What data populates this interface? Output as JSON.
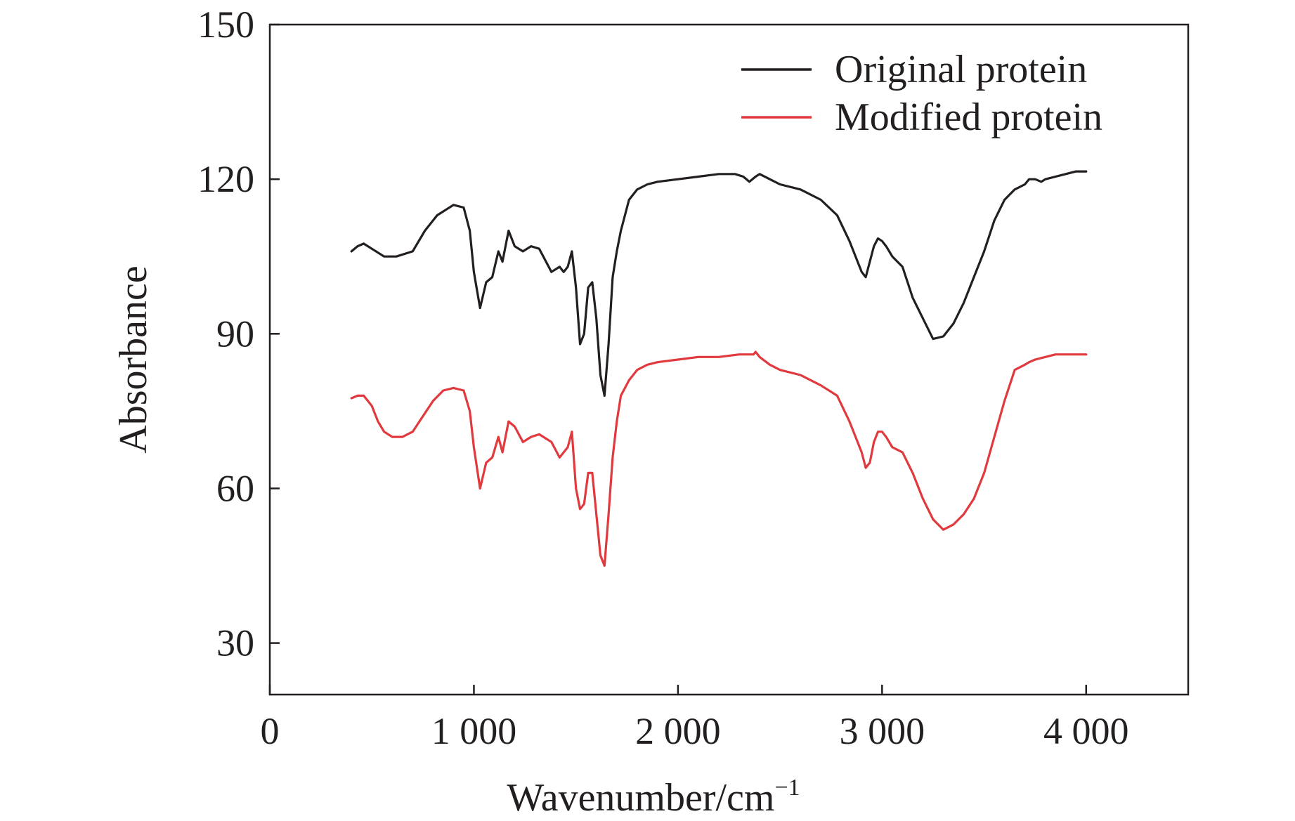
{
  "chart_data": {
    "type": "line",
    "title": "",
    "xlabel": "Wavenumber/cm",
    "xlabel_superscript": "−1",
    "ylabel": "Absorbance",
    "xlim": [
      0,
      4500
    ],
    "ylim": [
      20,
      150
    ],
    "x_ticks": [
      0,
      1000,
      2000,
      3000,
      4000
    ],
    "x_tick_labels": [
      "0",
      "1 000",
      "2 000",
      "3 000",
      "4 000"
    ],
    "y_ticks": [
      30,
      60,
      90,
      120,
      150
    ],
    "y_tick_labels": [
      "30",
      "60",
      "90",
      "120",
      "150"
    ],
    "grid": false,
    "legend_position": "top-right",
    "series": [
      {
        "name": "Original protein",
        "color": "#231f20",
        "x": [
          400,
          430,
          460,
          500,
          560,
          620,
          700,
          760,
          820,
          900,
          950,
          980,
          1000,
          1030,
          1060,
          1090,
          1120,
          1140,
          1170,
          1200,
          1240,
          1280,
          1320,
          1380,
          1420,
          1440,
          1460,
          1480,
          1500,
          1520,
          1540,
          1560,
          1580,
          1600,
          1620,
          1640,
          1660,
          1680,
          1700,
          1720,
          1760,
          1800,
          1850,
          1900,
          2000,
          2100,
          2200,
          2280,
          2320,
          2350,
          2380,
          2400,
          2450,
          2500,
          2600,
          2700,
          2780,
          2840,
          2880,
          2900,
          2920,
          2940,
          2960,
          2980,
          3000,
          3020,
          3050,
          3100,
          3150,
          3200,
          3250,
          3300,
          3350,
          3400,
          3450,
          3500,
          3550,
          3600,
          3650,
          3700,
          3720,
          3750,
          3780,
          3800,
          3850,
          3900,
          3950,
          4000
        ],
        "y": [
          106,
          107,
          107.5,
          106.5,
          105,
          105,
          106,
          110,
          113,
          115,
          114.5,
          110,
          102,
          95,
          100,
          101,
          106,
          104,
          110,
          107,
          106,
          107,
          106.5,
          102,
          103,
          102,
          103,
          106,
          99,
          88,
          90,
          99,
          100,
          93,
          82,
          78,
          88,
          101,
          106,
          110,
          116,
          118,
          119,
          119.5,
          120,
          120.5,
          121,
          121,
          120.5,
          119.5,
          120.5,
          121,
          120,
          119,
          118,
          116,
          113,
          108,
          104,
          102,
          101,
          104,
          107,
          108.5,
          108,
          107,
          105,
          103,
          97,
          93,
          89,
          89.5,
          92,
          96,
          101,
          106,
          112,
          116,
          118,
          119,
          120,
          120,
          119.5,
          120,
          120.5,
          121,
          121.5,
          121.5
        ]
      },
      {
        "name": "Modified protein",
        "color": "#e03a3e",
        "x": [
          400,
          430,
          460,
          500,
          530,
          560,
          600,
          650,
          700,
          750,
          800,
          850,
          900,
          950,
          980,
          1000,
          1030,
          1060,
          1090,
          1120,
          1140,
          1170,
          1200,
          1240,
          1280,
          1320,
          1380,
          1420,
          1440,
          1460,
          1480,
          1500,
          1520,
          1540,
          1560,
          1580,
          1600,
          1620,
          1640,
          1660,
          1680,
          1700,
          1720,
          1760,
          1800,
          1850,
          1900,
          2000,
          2100,
          2200,
          2300,
          2350,
          2370,
          2380,
          2400,
          2450,
          2500,
          2600,
          2700,
          2780,
          2840,
          2880,
          2900,
          2920,
          2940,
          2960,
          2980,
          3000,
          3020,
          3050,
          3100,
          3150,
          3200,
          3250,
          3300,
          3350,
          3400,
          3450,
          3500,
          3550,
          3600,
          3650,
          3700,
          3720,
          3750,
          3800,
          3850,
          3900,
          3950,
          4000
        ],
        "y": [
          77.5,
          78,
          78,
          76,
          73,
          71,
          70,
          70,
          71,
          74,
          77,
          79,
          79.5,
          79,
          75,
          68,
          60,
          65,
          66,
          70,
          67,
          73,
          72,
          69,
          70,
          70.5,
          69,
          66,
          67,
          68,
          71,
          60,
          56,
          57,
          63,
          63,
          55,
          47,
          45,
          55,
          66,
          73,
          78,
          81,
          83,
          84,
          84.5,
          85,
          85.5,
          85.5,
          86,
          86,
          86,
          86.5,
          85.5,
          84,
          83,
          82,
          80,
          78,
          73,
          69,
          67,
          64,
          65,
          69,
          71,
          71,
          70,
          68,
          67,
          63,
          58,
          54,
          52,
          53,
          55,
          58,
          63,
          70,
          77,
          83,
          84,
          84.5,
          85,
          85.5,
          86,
          86,
          86,
          86
        ]
      }
    ]
  }
}
